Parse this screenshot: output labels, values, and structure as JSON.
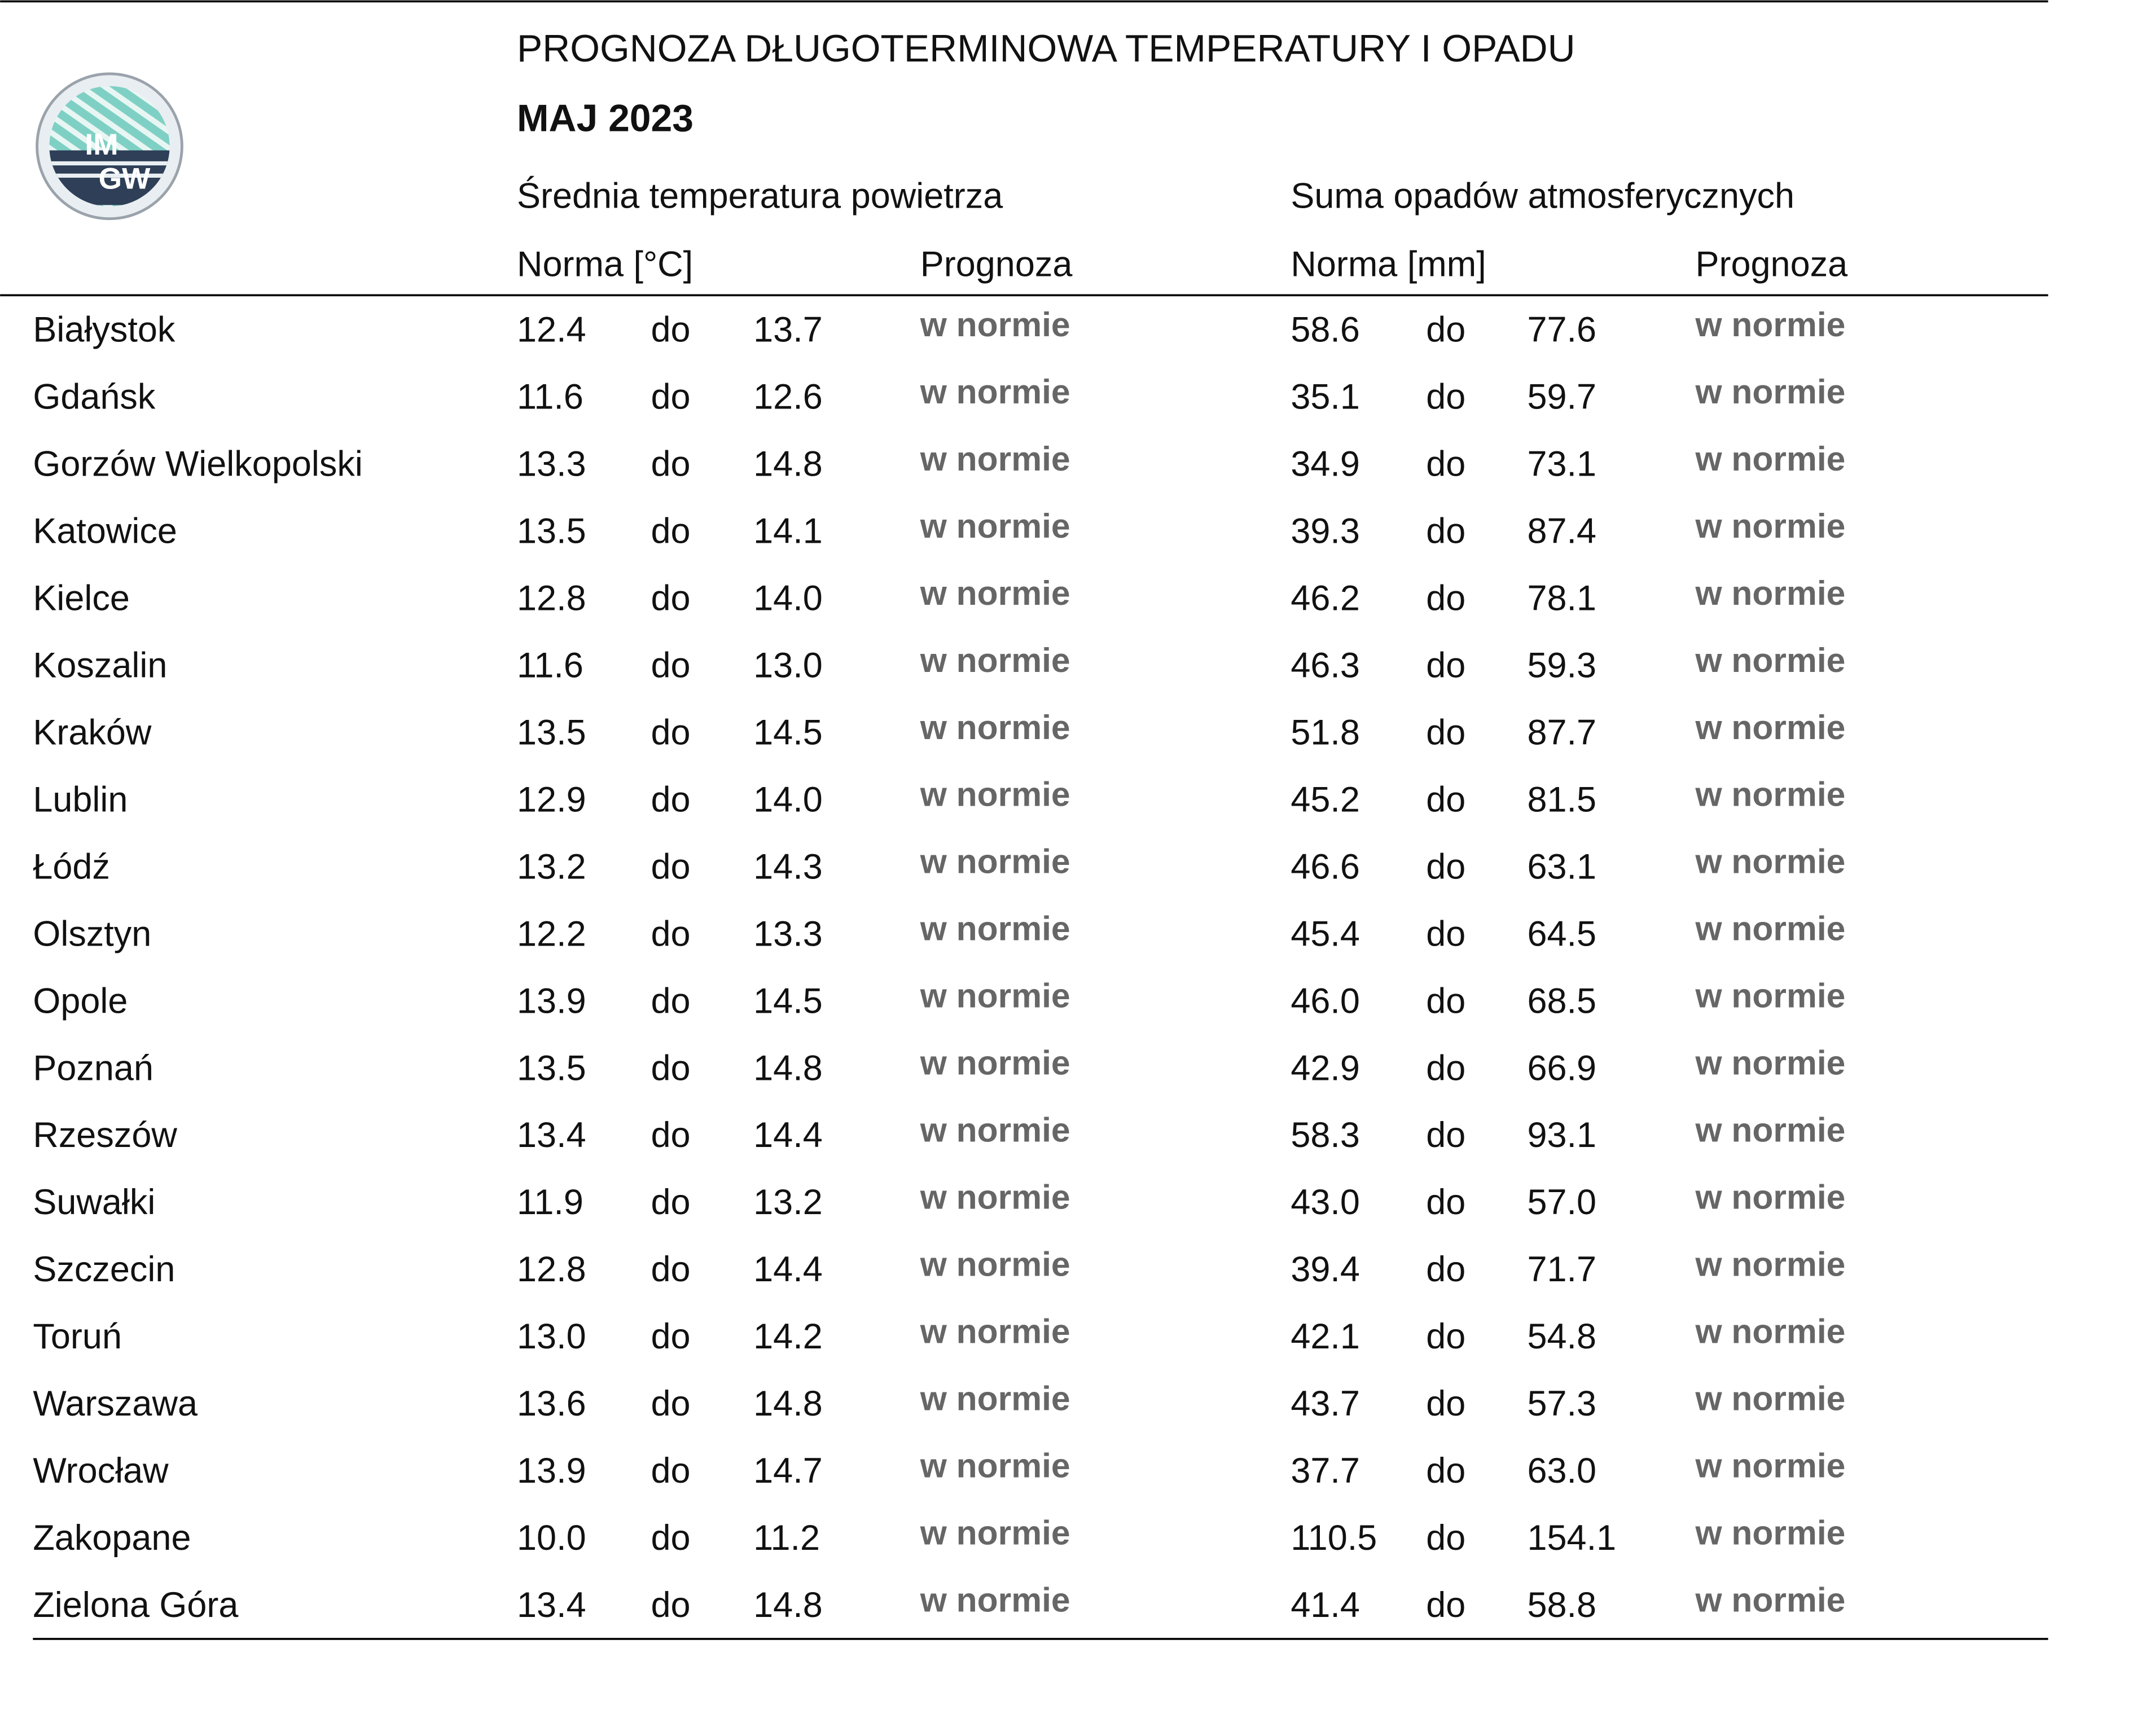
{
  "logo": {
    "top": "IM",
    "bottom": "GW"
  },
  "header": {
    "title": "PROGNOZA DŁUGOTERMINOWA TEMPERATURY I OPADU",
    "subtitle": "MAJ 2023",
    "temp_group": "Średnia temperatura powietrza",
    "precip_group": "Suma opadów atmosferycznych",
    "temp_norm": "Norma [°C]",
    "temp_forecast": "Prognoza",
    "precip_norm": "Norma [mm]",
    "precip_forecast": "Prognoza"
  },
  "table": {
    "rows": [
      [
        "Białystok",
        "12.4",
        "do",
        "13.7",
        "w normie",
        "58.6",
        "do",
        "77.6",
        "w normie"
      ],
      [
        "Gdańsk",
        "11.6",
        "do",
        "12.6",
        "w normie",
        "35.1",
        "do",
        "59.7",
        "w normie"
      ],
      [
        "Gorzów Wielkopolski",
        "13.3",
        "do",
        "14.8",
        "w normie",
        "34.9",
        "do",
        "73.1",
        "w normie"
      ],
      [
        "Katowice",
        "13.5",
        "do",
        "14.1",
        "w normie",
        "39.3",
        "do",
        "87.4",
        "w normie"
      ],
      [
        "Kielce",
        "12.8",
        "do",
        "14.0",
        "w normie",
        "46.2",
        "do",
        "78.1",
        "w normie"
      ],
      [
        "Koszalin",
        "11.6",
        "do",
        "13.0",
        "w normie",
        "46.3",
        "do",
        "59.3",
        "w normie"
      ],
      [
        "Kraków",
        "13.5",
        "do",
        "14.5",
        "w normie",
        "51.8",
        "do",
        "87.7",
        "w normie"
      ],
      [
        "Lublin",
        "12.9",
        "do",
        "14.0",
        "w normie",
        "45.2",
        "do",
        "81.5",
        "w normie"
      ],
      [
        "Łódź",
        "13.2",
        "do",
        "14.3",
        "w normie",
        "46.6",
        "do",
        "63.1",
        "w normie"
      ],
      [
        "Olsztyn",
        "12.2",
        "do",
        "13.3",
        "w normie",
        "45.4",
        "do",
        "64.5",
        "w normie"
      ],
      [
        "Opole",
        "13.9",
        "do",
        "14.5",
        "w normie",
        "46.0",
        "do",
        "68.5",
        "w normie"
      ],
      [
        "Poznań",
        "13.5",
        "do",
        "14.8",
        "w normie",
        "42.9",
        "do",
        "66.9",
        "w normie"
      ],
      [
        "Rzeszów",
        "13.4",
        "do",
        "14.4",
        "w normie",
        "58.3",
        "do",
        "93.1",
        "w normie"
      ],
      [
        "Suwałki",
        "11.9",
        "do",
        "13.2",
        "w normie",
        "43.0",
        "do",
        "57.0",
        "w normie"
      ],
      [
        "Szczecin",
        "12.8",
        "do",
        "14.4",
        "w normie",
        "39.4",
        "do",
        "71.7",
        "w normie"
      ],
      [
        "Toruń",
        "13.0",
        "do",
        "14.2",
        "w normie",
        "42.1",
        "do",
        "54.8",
        "w normie"
      ],
      [
        "Warszawa",
        "13.6",
        "do",
        "14.8",
        "w normie",
        "43.7",
        "do",
        "57.3",
        "w normie"
      ],
      [
        "Wrocław",
        "13.9",
        "do",
        "14.7",
        "w normie",
        "37.7",
        "do",
        "63.0",
        "w normie"
      ],
      [
        "Zakopane",
        "10.0",
        "do",
        "11.2",
        "w normie",
        "110.5",
        "do",
        "154.1",
        "w normie"
      ],
      [
        "Zielona Góra",
        "13.4",
        "do",
        "14.8",
        "w normie",
        "41.4",
        "do",
        "58.8",
        "w normie"
      ]
    ]
  }
}
